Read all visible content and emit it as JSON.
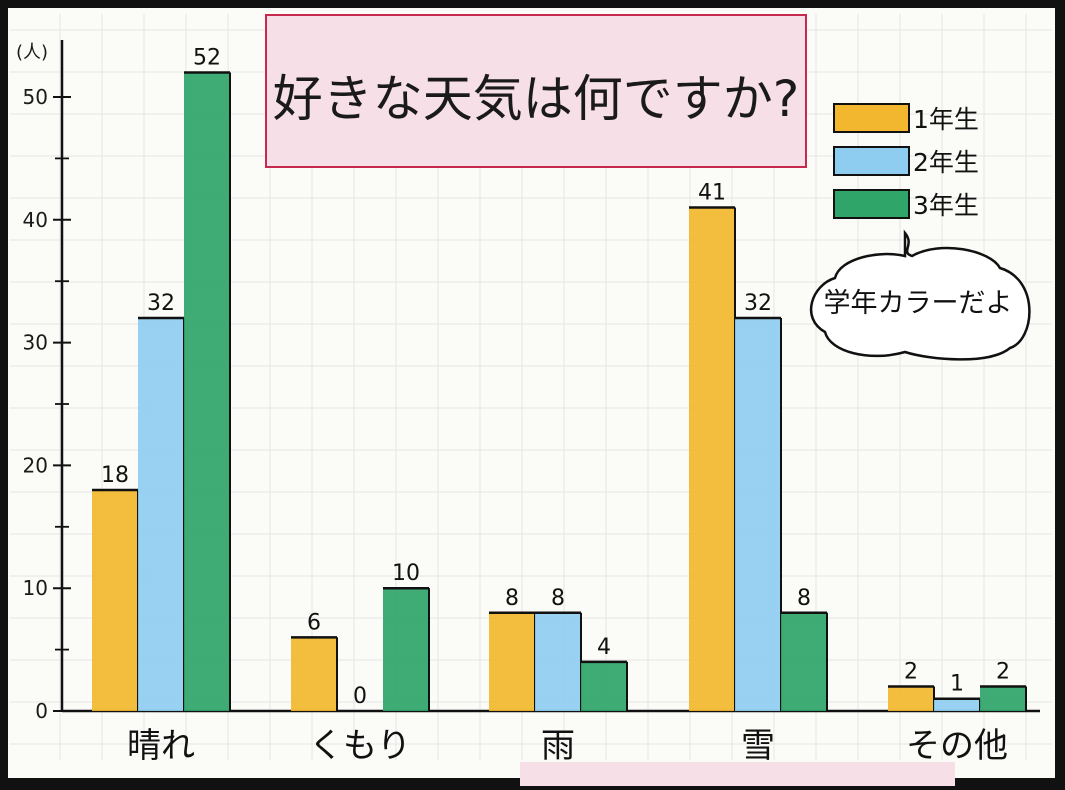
{
  "chart_data": {
    "type": "bar",
    "title": "好きな天気は何ですか?",
    "unit_label": "(人)",
    "categories": [
      "晴れ",
      "くもり",
      "雨",
      "雪",
      "その他"
    ],
    "series": [
      {
        "name": "1年生",
        "values": [
          18,
          6,
          8,
          41,
          2
        ]
      },
      {
        "name": "2年生",
        "values": [
          32,
          0,
          8,
          32,
          1
        ]
      },
      {
        "name": "3年生",
        "values": [
          52,
          10,
          4,
          8,
          2
        ]
      }
    ],
    "y_ticks": [
      0,
      10,
      20,
      30,
      40,
      50
    ],
    "ylim": [
      0,
      54
    ],
    "grid": true,
    "legend_position": "top-right",
    "colors": [
      "#f2b72e",
      "#8fcdf0",
      "#2fa56a"
    ],
    "callout": "学年カラーだよ"
  }
}
